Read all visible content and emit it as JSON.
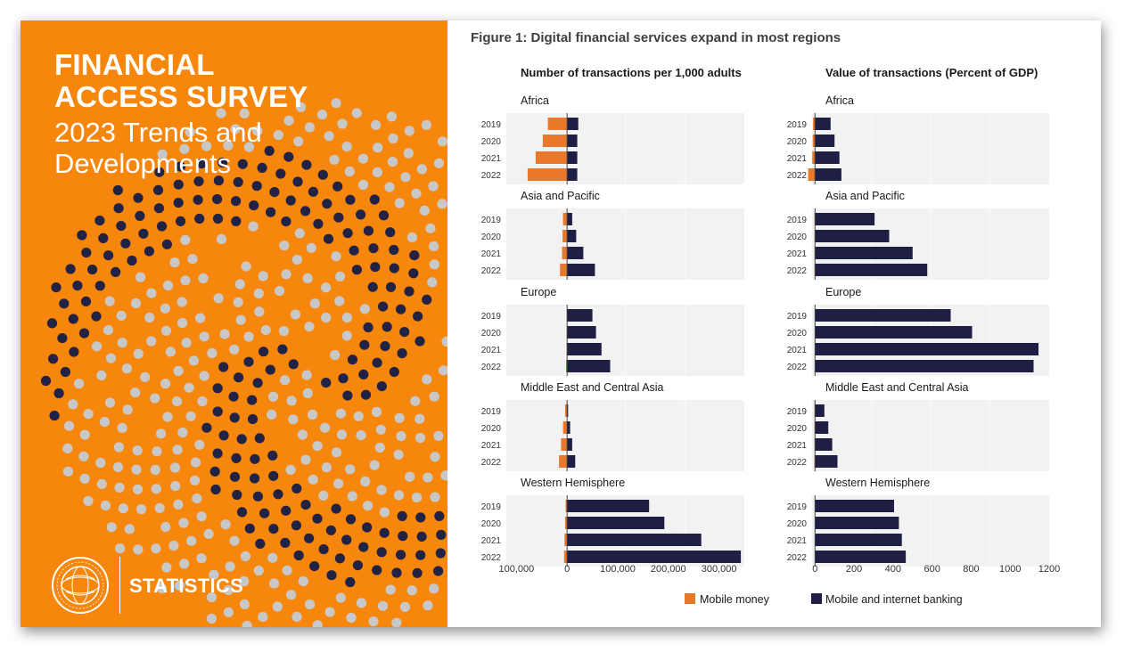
{
  "cover": {
    "title_line1": "FINANCIAL",
    "title_line2": "ACCESS SURVEY",
    "subtitle_line1": "2023 Trends and",
    "subtitle_line2": "Developments",
    "footer_label": "STATISTICS",
    "logo_name": "imf-seal",
    "colors": {
      "background": "#f7860c",
      "dot_dark": "#222244",
      "dot_light": "#c8c8c8",
      "dot_orange": "#f7860c"
    }
  },
  "figure_title": "Figure 1: Digital financial services expand in most regions",
  "legend": {
    "mobile_money": "Mobile money",
    "mobile_internet_banking": "Mobile and internet banking"
  },
  "chart_data": [
    {
      "type": "bar",
      "orientation": "horizontal",
      "title": "Number of transactions per 1,000 adults",
      "xlim": [
        -120000,
        350000
      ],
      "xticks": [
        -100000,
        0,
        100000,
        200000,
        300000
      ],
      "xtick_labels": [
        "100,000",
        "0",
        "100,000",
        "200,000",
        "300,000"
      ],
      "series_colors": {
        "Mobile money": "#e8782a",
        "Mobile and internet banking": "#1f1f45"
      },
      "panels": [
        {
          "region": "Africa",
          "categories": [
            "2019",
            "2020",
            "2021",
            "2022"
          ],
          "series": [
            {
              "name": "Mobile money",
              "values": [
                -38000,
                -48000,
                -62000,
                -78000
              ]
            },
            {
              "name": "Mobile and internet banking",
              "values": [
                22000,
                20000,
                20000,
                20000
              ]
            }
          ]
        },
        {
          "region": "Asia and Pacific",
          "categories": [
            "2019",
            "2020",
            "2021",
            "2022"
          ],
          "series": [
            {
              "name": "Mobile money",
              "values": [
                -8000,
                -9000,
                -10000,
                -14000
              ]
            },
            {
              "name": "Mobile and internet banking",
              "values": [
                10000,
                18000,
                32000,
                55000
              ]
            }
          ]
        },
        {
          "region": "Europe",
          "categories": [
            "2019",
            "2020",
            "2021",
            "2022"
          ],
          "series": [
            {
              "name": "Mobile money",
              "values": [
                -1000,
                -1000,
                -1000,
                -2000
              ]
            },
            {
              "name": "Mobile and internet banking",
              "values": [
                50000,
                57000,
                68000,
                85000
              ]
            }
          ]
        },
        {
          "region": "Middle East and Central Asia",
          "categories": [
            "2019",
            "2020",
            "2021",
            "2022"
          ],
          "series": [
            {
              "name": "Mobile money",
              "values": [
                -4000,
                -8000,
                -12000,
                -16000
              ]
            },
            {
              "name": "Mobile and internet banking",
              "values": [
                2000,
                6000,
                10000,
                16000
              ]
            }
          ]
        },
        {
          "region": "Western Hemisphere",
          "categories": [
            "2019",
            "2020",
            "2021",
            "2022"
          ],
          "series": [
            {
              "name": "Mobile money",
              "values": [
                -3000,
                -4000,
                -5000,
                -6000
              ]
            },
            {
              "name": "Mobile and internet banking",
              "values": [
                162000,
                192000,
                265000,
                343000
              ]
            }
          ]
        }
      ]
    },
    {
      "type": "bar",
      "orientation": "horizontal",
      "title": "Value of transactions (Percent of GDP)",
      "xlim": [
        -15,
        1200
      ],
      "xticks": [
        0,
        200,
        400,
        600,
        800,
        1000,
        1200
      ],
      "xtick_labels": [
        "0",
        "200",
        "400",
        "600",
        "800",
        "1000",
        "1200"
      ],
      "series_colors": {
        "Mobile money": "#e8782a",
        "Mobile and internet banking": "#1f1f45"
      },
      "panels": [
        {
          "region": "Africa",
          "categories": [
            "2019",
            "2020",
            "2021",
            "2022"
          ],
          "series": [
            {
              "name": "Mobile money",
              "values": [
                -10,
                -12,
                -14,
                -35
              ]
            },
            {
              "name": "Mobile and internet banking",
              "values": [
                80,
                100,
                125,
                135
              ]
            }
          ]
        },
        {
          "region": "Asia and Pacific",
          "categories": [
            "2019",
            "2020",
            "2021",
            "2022"
          ],
          "series": [
            {
              "name": "Mobile money",
              "values": [
                -2,
                -2,
                -2,
                -2
              ]
            },
            {
              "name": "Mobile and internet banking",
              "values": [
                305,
                380,
                500,
                575
              ]
            }
          ]
        },
        {
          "region": "Europe",
          "categories": [
            "2019",
            "2020",
            "2021",
            "2022"
          ],
          "series": [
            {
              "name": "Mobile money",
              "values": [
                0,
                0,
                0,
                0
              ]
            },
            {
              "name": "Mobile and internet banking",
              "values": [
                695,
                805,
                1145,
                1120
              ]
            }
          ]
        },
        {
          "region": "Middle East and Central Asia",
          "categories": [
            "2019",
            "2020",
            "2021",
            "2022"
          ],
          "series": [
            {
              "name": "Mobile money",
              "values": [
                -2,
                -2,
                -2,
                -3
              ]
            },
            {
              "name": "Mobile and internet banking",
              "values": [
                48,
                68,
                88,
                115
              ]
            }
          ]
        },
        {
          "region": "Western Hemisphere",
          "categories": [
            "2019",
            "2020",
            "2021",
            "2022"
          ],
          "series": [
            {
              "name": "Mobile money",
              "values": [
                -1,
                -1,
                -1,
                -1
              ]
            },
            {
              "name": "Mobile and internet banking",
              "values": [
                405,
                430,
                445,
                465
              ]
            }
          ]
        }
      ]
    }
  ]
}
